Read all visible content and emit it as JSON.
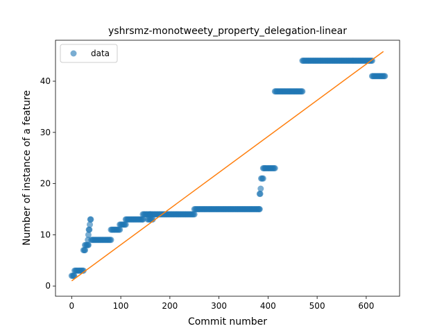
{
  "chart_data": {
    "type": "scatter",
    "title": "yshrsmz-monotweety_property_delegation-linear",
    "xlabel": "Commit number",
    "ylabel": "Number of instance of a feature",
    "xlim": [
      -33,
      668
    ],
    "ylim": [
      -2,
      48
    ],
    "xticks": [
      0,
      100,
      200,
      300,
      400,
      500,
      600
    ],
    "yticks": [
      0,
      10,
      20,
      30,
      40
    ],
    "grid": false,
    "legend": {
      "placement": "top-left",
      "entries": [
        "data"
      ]
    },
    "colors": {
      "data": "#1f77b4",
      "fit": "#ff7f0e"
    },
    "series": [
      {
        "name": "data",
        "kind": "scatter",
        "segments": [
          {
            "x_start": 0,
            "x_end": 5,
            "y": 2
          },
          {
            "x_start": 6,
            "x_end": 24,
            "y": 3
          },
          {
            "x_start": 24,
            "x_end": 27,
            "y": 7
          },
          {
            "x_start": 27,
            "x_end": 34,
            "y": 8
          },
          {
            "x_start": 33,
            "x_end": 33,
            "y": 9
          },
          {
            "x_start": 34,
            "x_end": 34,
            "y": 10
          },
          {
            "x_start": 35,
            "x_end": 36,
            "y": 11
          },
          {
            "x_start": 37,
            "x_end": 37,
            "y": 12
          },
          {
            "x_start": 38,
            "x_end": 39,
            "y": 13
          },
          {
            "x_start": 40,
            "x_end": 80,
            "y": 9
          },
          {
            "x_start": 80,
            "x_end": 98,
            "y": 11
          },
          {
            "x_start": 98,
            "x_end": 110,
            "y": 12
          },
          {
            "x_start": 110,
            "x_end": 145,
            "y": 13
          },
          {
            "x_start": 145,
            "x_end": 160,
            "y": 14
          },
          {
            "x_start": 155,
            "x_end": 165,
            "y": 13
          },
          {
            "x_start": 160,
            "x_end": 250,
            "y": 14
          },
          {
            "x_start": 250,
            "x_end": 383,
            "y": 15
          },
          {
            "x_start": 383,
            "x_end": 384,
            "y": 18
          },
          {
            "x_start": 385,
            "x_end": 385,
            "y": 19
          },
          {
            "x_start": 386,
            "x_end": 390,
            "y": 21
          },
          {
            "x_start": 390,
            "x_end": 414,
            "y": 23
          },
          {
            "x_start": 414,
            "x_end": 470,
            "y": 38
          },
          {
            "x_start": 470,
            "x_end": 612,
            "y": 44
          },
          {
            "x_start": 612,
            "x_end": 638,
            "y": 41
          }
        ]
      },
      {
        "name": "",
        "kind": "line",
        "x": [
          0,
          635
        ],
        "y": [
          1,
          45.8
        ]
      }
    ]
  }
}
